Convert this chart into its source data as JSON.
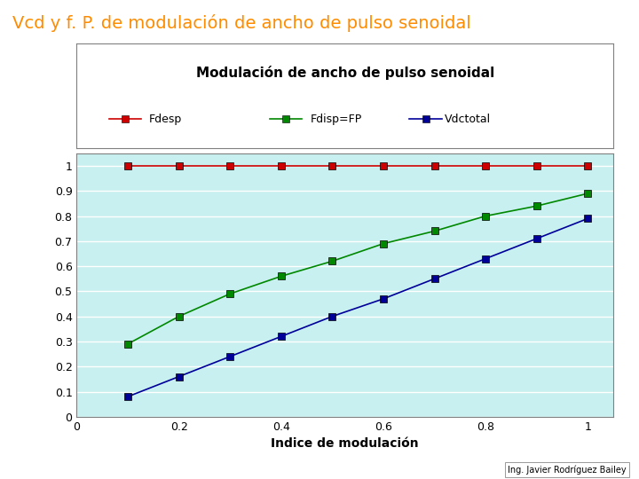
{
  "title_main": "Vcd y f. P. de modulación de ancho de pulso senoidal",
  "title_main_color": "#FF8C00",
  "chart_title": "Modulación de ancho de pulso senoidal",
  "xlabel": "Indice de modulación",
  "background_color": "#C8F0F0",
  "x": [
    0.1,
    0.2,
    0.3,
    0.4,
    0.5,
    0.6,
    0.7,
    0.8,
    0.9,
    1.0
  ],
  "Fdesp": [
    1.0,
    1.0,
    1.0,
    1.0,
    1.0,
    1.0,
    1.0,
    1.0,
    1.0,
    1.0
  ],
  "Fdisp": [
    0.29,
    0.4,
    0.49,
    0.56,
    0.62,
    0.69,
    0.74,
    0.8,
    0.84,
    0.89
  ],
  "Vdctotal": [
    0.08,
    0.16,
    0.24,
    0.32,
    0.4,
    0.47,
    0.55,
    0.63,
    0.71,
    0.79
  ],
  "Fdesp_color": "#CC0000",
  "Fdisp_color": "#008800",
  "Vdctotal_color": "#000099",
  "xlim": [
    0,
    1.05
  ],
  "ylim": [
    0,
    1.05
  ],
  "xticks": [
    0,
    0.2,
    0.4,
    0.6,
    0.8,
    1.0
  ],
  "yticks": [
    0,
    0.1,
    0.2,
    0.3,
    0.4,
    0.5,
    0.6,
    0.7,
    0.8,
    0.9,
    1.0
  ],
  "ytick_labels": [
    "0",
    "0.1",
    "0.2",
    "0.3",
    "0.4",
    "0.5",
    "0.6",
    "0.7",
    "0.8",
    "0.9",
    "1"
  ],
  "xtick_labels": [
    "0",
    "0.2",
    "0.4",
    "0.6",
    "0.8",
    "1"
  ],
  "legend_labels": [
    "Fdesp",
    "Fdisp=FP",
    "Vdctotal"
  ],
  "marker": "s",
  "marker_size": 6,
  "line_width": 1.2,
  "author_text": "Ing. Javier Rodríguez Bailey",
  "author_fontsize": 7,
  "title_main_fontsize": 14,
  "chart_title_fontsize": 11,
  "axis_label_fontsize": 10,
  "tick_fontsize": 9,
  "legend_fontsize": 9
}
